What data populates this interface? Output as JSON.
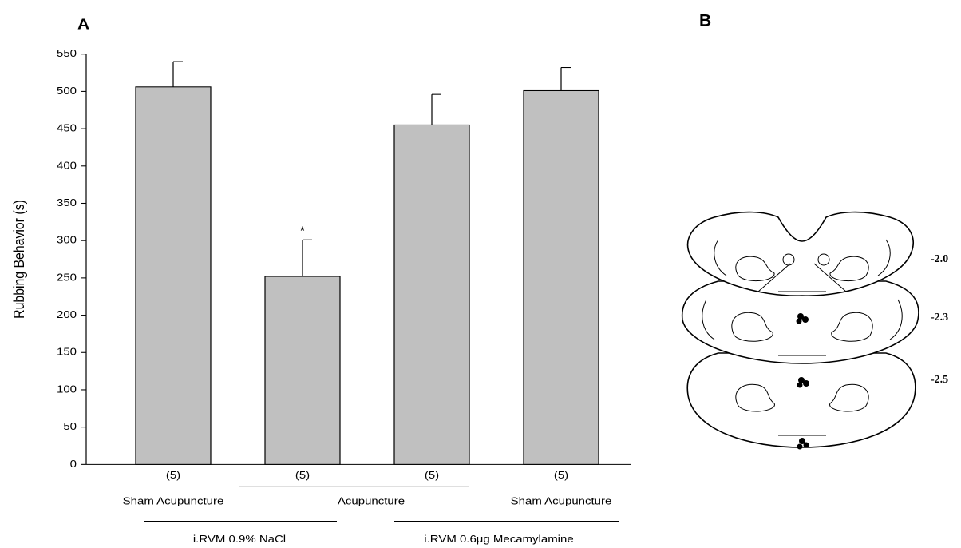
{
  "chart_data": {
    "type": "bar",
    "panel_label": "A",
    "ylabel": "Rubbing Behavior (s)",
    "categories": [
      "(5)",
      "(5)",
      "(5)",
      "(5)"
    ],
    "values": [
      506,
      252,
      455,
      501
    ],
    "errors": [
      34,
      49,
      41,
      31
    ],
    "color": "#c0c0c0",
    "annotations": [
      "*"
    ],
    "procedure_labels": [
      "Sham Acupuncture",
      "Acupuncture",
      "Sham Acupuncture"
    ],
    "treatment_labels": [
      "i.RVM 0.9% NaCl",
      "i.RVM 0.6μg Mecamylamine"
    ],
    "ylim": [
      0,
      550
    ],
    "yticks": [
      0,
      50,
      100,
      150,
      200,
      250,
      300,
      350,
      400,
      450,
      500,
      550
    ]
  },
  "panel_b": {
    "label": "B",
    "levels": [
      "-2.0",
      "-2.3",
      "-2.5"
    ]
  }
}
